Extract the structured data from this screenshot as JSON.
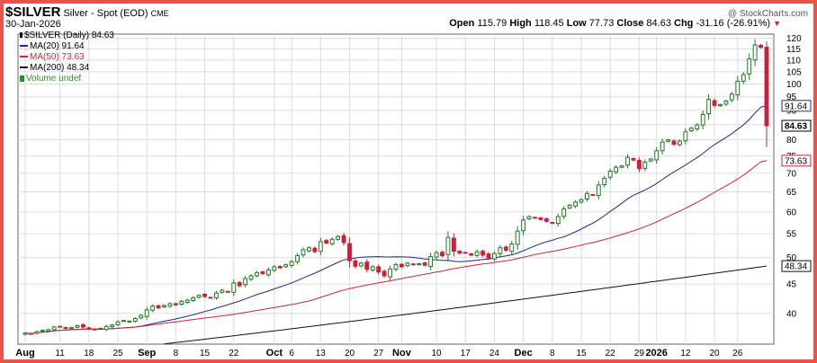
{
  "header": {
    "symbol": "$SILVER",
    "description": "Silver - Spot (EOD)",
    "exchange": "CME",
    "date": "30-Jan-2026",
    "watermark": "@ StockCharts.com",
    "quote": {
      "open_label": "Open",
      "open": "115.79",
      "high_label": "High",
      "high": "118.45",
      "low_label": "Low",
      "low": "77.73",
      "close_label": "Close",
      "close": "84.63",
      "chg_label": "Chg",
      "chg": "-31.16 (-26.91%)",
      "chg_arrow": "▼"
    }
  },
  "legend": {
    "title": "$SILVER (Daily) 84.63",
    "items": [
      {
        "label": "MA(20) 91.64",
        "color": "#1f2a8a"
      },
      {
        "label": "MA(50) 73.63",
        "color": "#d4223f"
      },
      {
        "label": "MA(200) 48.34",
        "color": "#111111"
      },
      {
        "label": "Volume undef",
        "color": "#2e8b2e"
      }
    ]
  },
  "chart_data": {
    "type": "candlestick",
    "y_scale": "log",
    "ylim": [
      35.4,
      122
    ],
    "y_ticks": [
      40,
      45,
      50,
      55,
      60,
      65,
      70,
      75,
      80,
      85,
      90,
      95,
      100,
      105,
      110,
      115,
      120
    ],
    "x_labels": [
      {
        "label": "Aug",
        "index": 0,
        "bold": true
      },
      {
        "label": "11",
        "index": 6
      },
      {
        "label": "18",
        "index": 11
      },
      {
        "label": "25",
        "index": 16
      },
      {
        "label": "Sep",
        "index": 21,
        "bold": true
      },
      {
        "label": "8",
        "index": 26
      },
      {
        "label": "15",
        "index": 31
      },
      {
        "label": "22",
        "index": 36
      },
      {
        "label": "Oct",
        "index": 43,
        "bold": true
      },
      {
        "label": "6",
        "index": 46
      },
      {
        "label": "13",
        "index": 51
      },
      {
        "label": "20",
        "index": 56
      },
      {
        "label": "27",
        "index": 61
      },
      {
        "label": "Nov",
        "index": 65,
        "bold": true
      },
      {
        "label": "10",
        "index": 71
      },
      {
        "label": "17",
        "index": 76
      },
      {
        "label": "24",
        "index": 81
      },
      {
        "label": "Dec",
        "index": 86,
        "bold": true
      },
      {
        "label": "8",
        "index": 91
      },
      {
        "label": "15",
        "index": 96
      },
      {
        "label": "22",
        "index": 101
      },
      {
        "label": "29",
        "index": 106
      },
      {
        "label": "2026",
        "index": 109,
        "bold": true
      },
      {
        "label": "12",
        "index": 114
      },
      {
        "label": "20",
        "index": 119
      },
      {
        "label": "26",
        "index": 123
      }
    ],
    "closes": [
      37.0,
      36.9,
      37.2,
      37.4,
      37.5,
      37.9,
      38.0,
      37.7,
      37.8,
      38.1,
      37.9,
      37.6,
      37.5,
      37.7,
      38.0,
      38.2,
      38.7,
      38.9,
      38.8,
      39.2,
      39.7,
      40.6,
      41.2,
      40.9,
      41.3,
      41.6,
      41.4,
      42.0,
      42.2,
      42.6,
      43.0,
      42.8,
      42.6,
      43.4,
      43.9,
      43.6,
      45.2,
      44.7,
      46.0,
      46.5,
      47.1,
      46.9,
      47.6,
      48.2,
      48.0,
      48.6,
      49.2,
      50.4,
      51.6,
      52.0,
      51.2,
      53.3,
      53.0,
      53.8,
      54.4,
      53.1,
      49.4,
      48.3,
      48.9,
      47.7,
      48.2,
      47.2,
      46.5,
      47.8,
      48.6,
      48.2,
      48.9,
      48.6,
      48.8,
      48.5,
      50.2,
      51.0,
      50.4,
      54.2,
      51.3,
      50.9,
      51.0,
      50.5,
      51.2,
      50.5,
      49.9,
      50.8,
      52.0,
      51.5,
      52.8,
      55.6,
      58.1,
      58.9,
      58.6,
      58.2,
      57.8,
      57.4,
      58.9,
      60.7,
      61.6,
      62.4,
      63.0,
      64.6,
      64.2,
      66.8,
      68.6,
      70.6,
      71.7,
      72.1,
      74.6,
      73.8,
      71.3,
      73.2,
      74.1,
      76.6,
      79.3,
      80.0,
      78.6,
      79.6,
      82.6,
      83.8,
      84.9,
      88.5,
      94.0,
      91.8,
      92.1,
      93.4,
      96.0,
      101.1,
      103.8,
      110.5,
      116.9,
      115.8,
      84.63
    ],
    "last_candle": {
      "open": 115.79,
      "high": 118.45,
      "low": 77.73,
      "close": 84.63
    },
    "series": [
      {
        "name": "MA(20)",
        "last": 91.64,
        "color": "#1f2a8a",
        "tag": "91.64"
      },
      {
        "name": "MA(50)",
        "last": 73.63,
        "color": "#d4223f",
        "tag": "73.63"
      },
      {
        "name": "MA(200)",
        "last": 48.34,
        "color": "#111111",
        "tag": "48.34"
      }
    ],
    "last_price_tag": "84.63",
    "grid": true,
    "legend_position": "top-left",
    "up_color": "#1e7a1e",
    "down_color": "#cc1f3a"
  }
}
